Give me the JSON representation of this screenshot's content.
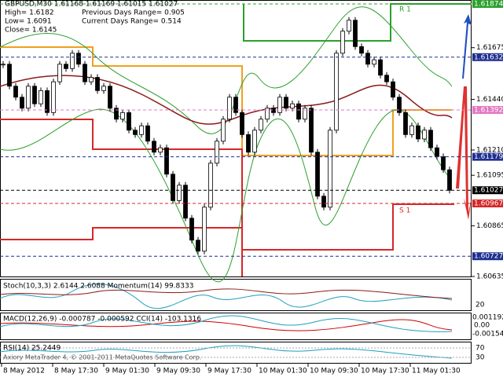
{
  "header": {
    "symbol_line": "GBPUSD,M30  1.61168 1.61169 1.61015 1.61027",
    "lines": [
      "High= 1.6182",
      "Low= 1.6091",
      "Close= 1.6145"
    ],
    "ranges": [
      "Previous Days Range= 0.905",
      "Current Days Range= 0.514"
    ]
  },
  "price_axis": {
    "range": [
      1.60635,
      1.61874
    ],
    "ticks": [
      {
        "value": 1.61675,
        "label": "1.61675"
      },
      {
        "value": 1.6144,
        "label": "1.61440"
      },
      {
        "value": 1.6121,
        "label": "1.61210"
      },
      {
        "value": 1.61095,
        "label": "1.61095"
      },
      {
        "value": 1.60865,
        "label": "1.60865"
      },
      {
        "value": 1.60635,
        "label": "1.60635"
      }
    ],
    "levels": [
      {
        "value": 1.61874,
        "label": "1.61874",
        "color": "#2ca02c"
      },
      {
        "value": 1.61632,
        "label": "1.61632",
        "color": "#1f2f8f"
      },
      {
        "value": 1.61392,
        "label": "1.61392",
        "color": "#e377c2"
      },
      {
        "value": 1.61179,
        "label": "1.61179",
        "color": "#1f2f8f"
      },
      {
        "value": 1.61027,
        "label": "1.61027",
        "color": "#000000"
      },
      {
        "value": 1.60967,
        "label": "1.60967",
        "color": "#d62728"
      },
      {
        "value": 1.60727,
        "label": "1.60727",
        "color": "#1f2f8f"
      }
    ]
  },
  "pivot_labels": [
    "R 1",
    "S 1"
  ],
  "closes": [
    1.616,
    1.615,
    1.6145,
    1.614,
    1.615,
    1.6142,
    1.6148,
    1.6138,
    1.6152,
    1.616,
    1.6158,
    1.6165,
    1.616,
    1.6152,
    1.6154,
    1.6148,
    1.615,
    1.614,
    1.6135,
    1.6138,
    1.613,
    1.6128,
    1.6132,
    1.6125,
    1.612,
    1.6122,
    1.611,
    1.6098,
    1.6105,
    1.609,
    1.608,
    1.6075,
    1.6095,
    1.6115,
    1.6125,
    1.6135,
    1.6145,
    1.6138,
    1.6128,
    1.612,
    1.613,
    1.6135,
    1.614,
    1.6138,
    1.6145,
    1.614,
    1.6142,
    1.6135,
    1.614,
    1.612,
    1.61,
    1.6095,
    1.613,
    1.6165,
    1.6175,
    1.618,
    1.6168,
    1.6165,
    1.616,
    1.6162,
    1.6155,
    1.6152,
    1.6145,
    1.6138,
    1.6128,
    1.6132,
    1.6126,
    1.613,
    1.6122,
    1.6118,
    1.6112,
    1.61027
  ],
  "windows": [
    {
      "label": "Stoch(10,3,3) 2.6144 2.6088  Momentum(14) 99.8333",
      "axis": [
        "20"
      ]
    },
    {
      "label": "MACD(12,26,9) -0.000787 -0.000592  CCI(14) -103.1316",
      "axis": [
        "0.001192",
        "0.00",
        "-0.00154"
      ]
    },
    {
      "label": "RSI(14) 25.2449",
      "axis": [
        "70",
        "30"
      ]
    }
  ],
  "watermark": "Axiory MetaTrader 4, © 2001-2011 MetaQuotes Software Corp.",
  "time_axis": [
    "8 May 2012",
    "8 May 17:30",
    "9 May 01:30",
    "9 May 09:30",
    "9 May 17:30",
    "10 May 01:30",
    "10 May 09:30",
    "10 May 17:30",
    "11 May 01:30"
  ]
}
